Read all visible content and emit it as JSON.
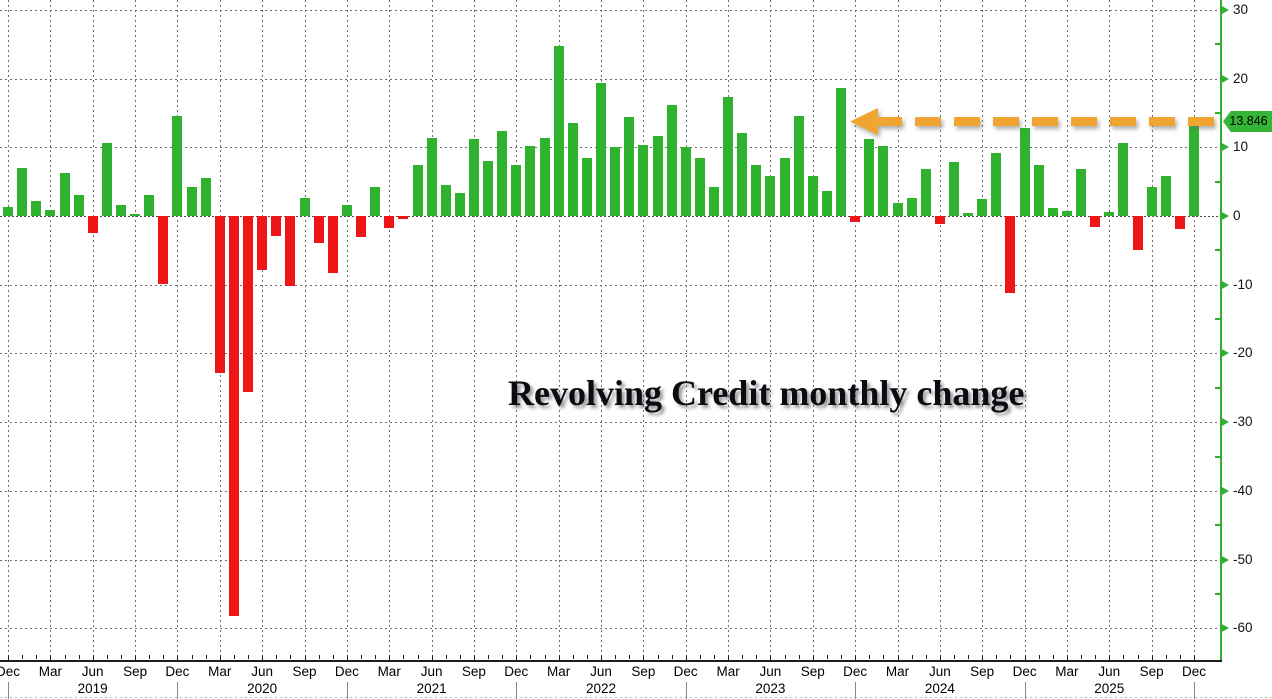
{
  "title": "Revolving Credit monthly change",
  "annotation": {
    "last_value": "13.846",
    "arrow": "dashed orange arrow pointing left from the y-axis to the latest bar at value 13.846"
  },
  "colors": {
    "bar_positive": "#2fb32f",
    "bar_negative": "#ed1515",
    "axis_green": "#2faf2f",
    "arrow_orange": "#f0a532",
    "tag_green": "#35b535",
    "gridline": "#6e6e6e",
    "title_text": "#0b0b12"
  },
  "y_axis": {
    "side": "right",
    "ticks": [
      30,
      20,
      10,
      0,
      -10,
      -20,
      -30,
      -40,
      -50,
      -60
    ],
    "minor_tick_step": 5
  },
  "x_axis": {
    "tick_label_every_months": 3,
    "quarter_label_names": [
      "Dec",
      "Mar",
      "Jun",
      "Sep"
    ],
    "years": [
      {
        "label": "2019",
        "month_index": 6
      },
      {
        "label": "2020",
        "month_index": 18
      },
      {
        "label": "2021",
        "month_index": 30
      },
      {
        "label": "2022",
        "month_index": 42
      },
      {
        "label": "2023",
        "month_index": 54
      },
      {
        "label": "2024",
        "month_index": 66
      },
      {
        "label": "2025",
        "month_index": 78
      }
    ]
  },
  "chart_data": {
    "type": "bar",
    "title": "Revolving Credit monthly change",
    "xlabel": "",
    "ylabel": "",
    "ylim": [
      -60,
      30
    ],
    "grid": true,
    "legend": null,
    "x": [
      "Dec 2018",
      "Jan 2019",
      "Feb 2019",
      "Mar 2019",
      "Apr 2019",
      "May 2019",
      "Jun 2019",
      "Jul 2019",
      "Aug 2019",
      "Sep 2019",
      "Oct 2019",
      "Nov 2019",
      "Dec 2019",
      "Jan 2020",
      "Feb 2020",
      "Mar 2020",
      "Apr 2020",
      "May 2020",
      "Jun 2020",
      "Jul 2020",
      "Aug 2020",
      "Sep 2020",
      "Oct 2020",
      "Nov 2020",
      "Dec 2020",
      "Jan 2021",
      "Feb 2021",
      "Mar 2021",
      "Apr 2021",
      "May 2021",
      "Jun 2021",
      "Jul 2021",
      "Aug 2021",
      "Sep 2021",
      "Oct 2021",
      "Nov 2021",
      "Dec 2021",
      "Jan 2022",
      "Feb 2022",
      "Mar 2022",
      "Apr 2022",
      "May 2022",
      "Jun 2022",
      "Jul 2022",
      "Aug 2022",
      "Sep 2022",
      "Oct 2022",
      "Nov 2022",
      "Dec 2022",
      "Jan 2023",
      "Feb 2023",
      "Mar 2023",
      "Apr 2023",
      "May 2023",
      "Jun 2023",
      "Jul 2023",
      "Aug 2023",
      "Sep 2023",
      "Oct 2023",
      "Nov 2023",
      "Dec 2023",
      "Jan 2024",
      "Feb 2024",
      "Mar 2024",
      "Apr 2024",
      "May 2024",
      "Jun 2024",
      "Jul 2024",
      "Aug 2024",
      "Sep 2024",
      "Oct 2024",
      "Nov 2024",
      "Dec 2024",
      "Jan 2025",
      "Feb 2025",
      "Mar 2025",
      "Apr 2025",
      "May 2025",
      "Jun 2025",
      "Jul 2025",
      "Aug 2025",
      "Sep 2025",
      "Oct 2025",
      "Nov 2025",
      "Dec 2025"
    ],
    "values": [
      1.3,
      7.0,
      2.2,
      0.9,
      6.3,
      3.1,
      -2.4,
      10.7,
      1.6,
      0.3,
      3.0,
      -9.9,
      14.6,
      4.2,
      5.5,
      -22.9,
      -58.2,
      -25.6,
      -7.8,
      -2.9,
      -10.2,
      2.7,
      -3.9,
      -8.3,
      1.6,
      -3.1,
      4.3,
      -1.7,
      -0.5,
      7.4,
      11.4,
      4.5,
      3.3,
      11.2,
      8.0,
      12.4,
      7.5,
      10.2,
      11.4,
      24.7,
      13.6,
      8.5,
      19.3,
      10.1,
      14.4,
      10.3,
      11.6,
      16.2,
      10.1,
      8.4,
      4.3,
      17.3,
      12.1,
      7.4,
      5.8,
      8.5,
      14.6,
      5.9,
      3.7,
      18.7,
      -0.8,
      11.2,
      10.2,
      1.9,
      2.6,
      6.8,
      -1.1,
      7.8,
      0.5,
      2.5,
      9.2,
      -11.2,
      12.8,
      7.5,
      1.1,
      0.8,
      6.9,
      -1.6,
      0.6,
      10.6,
      -4.9,
      4.3,
      5.8,
      -1.9,
      13.846
    ]
  }
}
